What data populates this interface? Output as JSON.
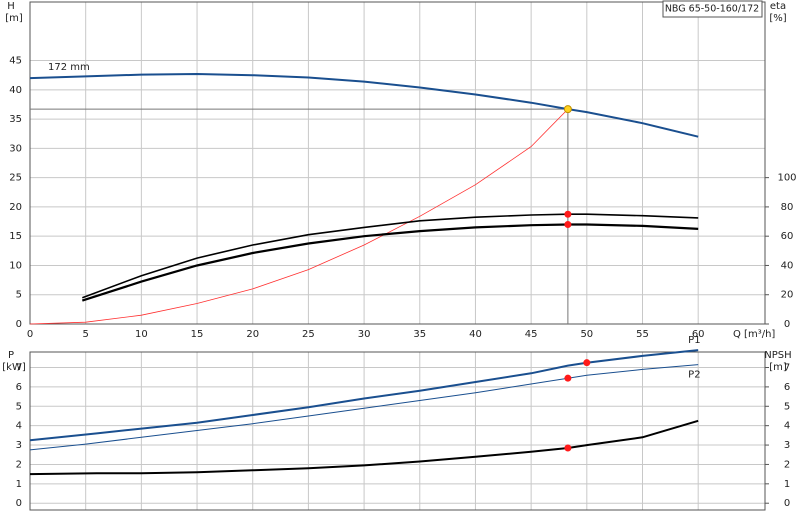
{
  "chart_data": [
    {
      "type": "line",
      "title": "NBG 65-50-160/172",
      "y_label": "H",
      "y_unit": "[m]",
      "y2_label": "eta",
      "y2_unit": "[%]",
      "x_label": "Q [m³/h]",
      "xlim": [
        0,
        66
      ],
      "xticks": [
        0,
        5,
        10,
        15,
        20,
        25,
        30,
        35,
        40,
        45,
        50,
        55,
        60
      ],
      "ylim": [
        0,
        55
      ],
      "yticks": [
        0,
        5,
        10,
        15,
        20,
        25,
        30,
        35,
        40,
        45
      ],
      "y2lim": [
        0,
        220
      ],
      "y2ticks": [
        0,
        20,
        40,
        60,
        80,
        100
      ],
      "grid": true,
      "xtick_labels": true,
      "series": [
        {
          "name": "172 mm",
          "name_at": "start",
          "color": "#1a4f8f",
          "width": 2,
          "marked": 10,
          "marker_color": "#ffd21f",
          "guides": true,
          "x": [
            0,
            5,
            10,
            15,
            20,
            25,
            30,
            35,
            40,
            45,
            48.3,
            50,
            55,
            60
          ],
          "values": [
            42,
            42.3,
            42.6,
            42.7,
            42.5,
            42.1,
            41.4,
            40.4,
            39.2,
            37.8,
            36.7,
            36.2,
            34.3,
            32
          ]
        },
        {
          "color": "#ff3030",
          "width": 0.8,
          "x": [
            0,
            5,
            10,
            15,
            20,
            25,
            30,
            35,
            40,
            45,
            48.3
          ],
          "values": [
            0,
            0.3,
            1.5,
            3.5,
            6,
            9.3,
            13.5,
            18.4,
            23.8,
            30.3,
            36.7
          ]
        },
        {
          "color": "#000000",
          "width": 1.6,
          "axis": "y2",
          "marked": 9,
          "marker_color": "#ff1a1a",
          "x": [
            4.7,
            10,
            15,
            20,
            25,
            30,
            35,
            40,
            45,
            48.3,
            50,
            55,
            60
          ],
          "values": [
            18,
            33,
            45,
            54,
            61,
            66,
            70.5,
            73,
            74.5,
            75,
            75,
            74,
            72.5
          ]
        },
        {
          "color": "#000000",
          "width": 2.2,
          "axis": "y2",
          "marked": 9,
          "marker_color": "#ff1a1a",
          "x": [
            4.7,
            10,
            15,
            20,
            25,
            30,
            35,
            40,
            45,
            48.3,
            50,
            55,
            60
          ],
          "values": [
            16,
            29,
            40,
            48.5,
            55,
            60,
            63.5,
            66,
            67.5,
            68,
            68,
            67,
            65
          ]
        }
      ]
    },
    {
      "type": "line",
      "y_label": "P",
      "y_unit": "[kW]",
      "y2_label": "NPSH",
      "y2_unit": "[m]",
      "xlim": [
        0,
        66
      ],
      "xticks": [
        0,
        5,
        10,
        15,
        20,
        25,
        30,
        35,
        40,
        45,
        50,
        55,
        60
      ],
      "ylim": [
        -0.35,
        7.8
      ],
      "yticks": [
        0,
        1,
        2,
        3,
        4,
        5,
        6,
        7
      ],
      "y2lim": [
        -0.35,
        7.8
      ],
      "y2ticks": [
        0,
        1,
        2,
        3,
        4,
        5,
        6,
        7
      ],
      "grid": true,
      "xtick_labels": false,
      "series": [
        {
          "name": "P1",
          "name_at": "end",
          "color": "#1a4f8f",
          "width": 2,
          "marked": 11,
          "marker_color": "#ff1a1a",
          "x": [
            0,
            6,
            10,
            15,
            20,
            25,
            30,
            35,
            40,
            45,
            48.3,
            50,
            55,
            60
          ],
          "values": [
            3.25,
            3.6,
            3.85,
            4.15,
            4.55,
            4.95,
            5.4,
            5.8,
            6.25,
            6.7,
            7.1,
            7.25,
            7.6,
            7.9
          ]
        },
        {
          "name": "P2",
          "name_at": "end",
          "color": "#1a4f8f",
          "width": 1,
          "marked": 10,
          "marker_color": "#ff1a1a",
          "x": [
            0,
            5,
            10,
            15,
            20,
            25,
            30,
            35,
            40,
            45,
            48.3,
            50,
            55,
            60
          ],
          "values": [
            2.75,
            3.05,
            3.4,
            3.75,
            4.1,
            4.5,
            4.9,
            5.3,
            5.7,
            6.15,
            6.45,
            6.6,
            6.9,
            7.15
          ]
        },
        {
          "color": "#000000",
          "width": 2,
          "axis": "y2",
          "marked": 10,
          "marker_color": "#ff1a1a",
          "x": [
            0,
            6,
            10,
            15,
            20,
            25,
            30,
            35,
            40,
            45,
            48.3,
            50,
            55,
            60
          ],
          "values": [
            1.5,
            1.55,
            1.55,
            1.6,
            1.7,
            1.8,
            1.95,
            2.15,
            2.4,
            2.65,
            2.85,
            3.0,
            3.4,
            4.25
          ]
        }
      ]
    }
  ]
}
